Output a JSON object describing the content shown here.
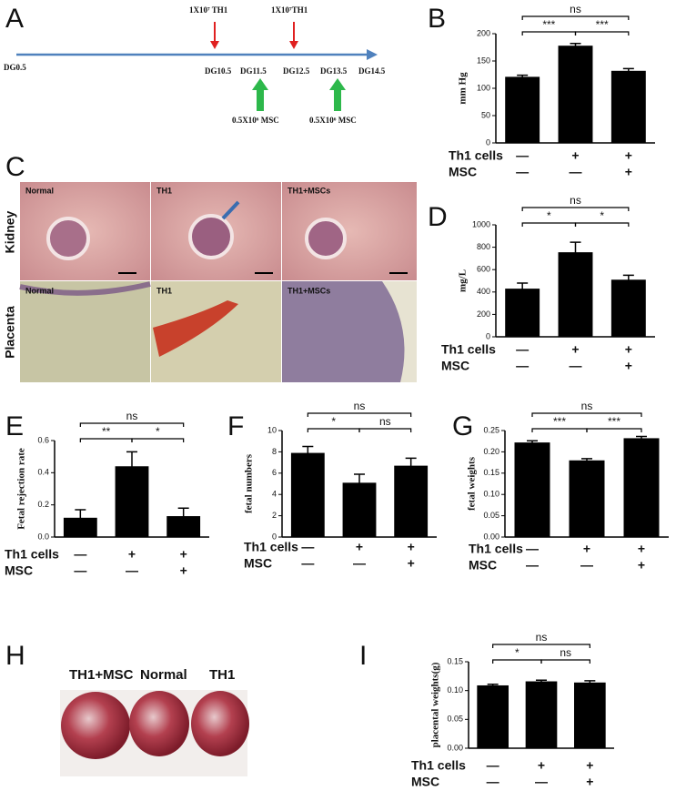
{
  "panel_a": {
    "letter": "A",
    "start": "DG0.5",
    "days": [
      "DG10.5",
      "DG11.5",
      "DG12.5",
      "DG13.5",
      "DG14.5"
    ],
    "th1_injections": [
      "1X10⁷ TH1",
      "1X10⁷TH1"
    ],
    "msc_injections": [
      "0.5X10⁶ MSC",
      "0.5X10⁶ MSC"
    ]
  },
  "panel_c": {
    "letter": "C",
    "rows": [
      "Kidney",
      "Placenta"
    ],
    "kidney_tiles": [
      "Normal",
      "TH1",
      "TH1+MSCs"
    ],
    "placenta_tiles": [
      "Normal",
      "TH1",
      "TH1+MSCs"
    ]
  },
  "panel_h": {
    "letter": "H",
    "labels": [
      "TH1+MSC",
      "Normal",
      "TH1"
    ]
  },
  "chart_data": [
    {
      "type": "bar",
      "panel": "B",
      "y_label": "mm Hg",
      "categories": [
        null,
        null,
        null
      ],
      "values": [
        121,
        178,
        132
      ],
      "errors": [
        3,
        4,
        4
      ],
      "color": "#000000",
      "ylim": [
        0,
        200
      ],
      "yticks": [
        0,
        50,
        100,
        150,
        200
      ],
      "conditions": [
        {
          "name": "Th1 cells",
          "labels": [
            "—",
            "+",
            "+"
          ]
        },
        {
          "name": "MSC",
          "labels": [
            "—",
            "—",
            "+"
          ]
        }
      ],
      "brackets": [
        {
          "label": "ns",
          "between": [
            0,
            2
          ]
        },
        {
          "label": "***",
          "between": [
            0,
            1
          ]
        },
        {
          "label": "***",
          "between": [
            1,
            2
          ]
        }
      ]
    },
    {
      "type": "bar",
      "panel": "D",
      "y_label": "mg/L",
      "categories": [
        null,
        null,
        null
      ],
      "values": [
        430,
        755,
        510
      ],
      "errors": [
        50,
        90,
        40
      ],
      "color": "#000000",
      "ylim": [
        0,
        1000
      ],
      "yticks": [
        0,
        200,
        400,
        600,
        800,
        1000
      ],
      "conditions": [
        {
          "name": "Th1 cells",
          "labels": [
            "—",
            "+",
            "+"
          ]
        },
        {
          "name": "MSC",
          "labels": [
            "—",
            "—",
            "+"
          ]
        }
      ],
      "brackets": [
        {
          "label": "ns",
          "between": [
            0,
            2
          ]
        },
        {
          "label": "*",
          "between": [
            0,
            1
          ]
        },
        {
          "label": "*",
          "between": [
            1,
            2
          ]
        }
      ]
    },
    {
      "type": "bar",
      "panel": "E",
      "y_label": "Fetal rejection rate",
      "categories": [
        null,
        null,
        null
      ],
      "values": [
        0.12,
        0.44,
        0.13
      ],
      "errors": [
        0.05,
        0.09,
        0.05
      ],
      "color": "#000000",
      "ylim": [
        0,
        0.6
      ],
      "yticks": [
        {
          "value": 0,
          "label": "0.0"
        },
        0.2,
        0.4,
        0.6
      ],
      "conditions": [
        {
          "name": "Th1 cells",
          "labels": [
            "—",
            "+",
            "+"
          ]
        },
        {
          "name": "MSC",
          "labels": [
            "—",
            "—",
            "+"
          ]
        }
      ],
      "brackets": [
        {
          "label": "ns",
          "between": [
            0,
            2
          ]
        },
        {
          "label": "**",
          "between": [
            0,
            1
          ]
        },
        {
          "label": "*",
          "between": [
            1,
            2
          ]
        }
      ]
    },
    {
      "type": "bar",
      "panel": "F",
      "y_label": "fetal numbers",
      "categories": [
        null,
        null,
        null
      ],
      "values": [
        7.9,
        5.1,
        6.7
      ],
      "errors": [
        0.6,
        0.8,
        0.7
      ],
      "color": "#000000",
      "ylim": [
        0,
        10
      ],
      "yticks": [
        0,
        2,
        4,
        6,
        8,
        10
      ],
      "conditions": [
        {
          "name": "Th1 cells",
          "labels": [
            "—",
            "+",
            "+"
          ]
        },
        {
          "name": "MSC",
          "labels": [
            "—",
            "—",
            "+"
          ]
        }
      ],
      "brackets": [
        {
          "label": "ns",
          "between": [
            0,
            2
          ]
        },
        {
          "label": "*",
          "between": [
            0,
            1
          ]
        },
        {
          "label": "ns",
          "between": [
            1,
            2
          ]
        }
      ]
    },
    {
      "type": "bar",
      "panel": "G",
      "y_label": "fetal weights",
      "categories": [
        null,
        null,
        null
      ],
      "values": [
        0.222,
        0.18,
        0.232
      ],
      "errors": [
        0.004,
        0.004,
        0.004
      ],
      "color": "#000000",
      "ylim": [
        0,
        0.25
      ],
      "yticks": [
        {
          "value": 0,
          "label": "0.00"
        },
        0.05,
        {
          "value": 0.1,
          "label": "0.10"
        },
        0.15,
        {
          "value": 0.2,
          "label": "0.20"
        },
        0.25
      ],
      "conditions": [
        {
          "name": "Th1 cells",
          "labels": [
            "—",
            "+",
            "+"
          ]
        },
        {
          "name": "MSC",
          "labels": [
            "—",
            "—",
            "+"
          ]
        }
      ],
      "brackets": [
        {
          "label": "ns",
          "between": [
            0,
            2
          ]
        },
        {
          "label": "***",
          "between": [
            0,
            1
          ]
        },
        {
          "label": "***",
          "between": [
            1,
            2
          ]
        }
      ]
    },
    {
      "type": "bar",
      "panel": "I",
      "y_label": "placental weights(g)",
      "categories": [
        null,
        null,
        null
      ],
      "values": [
        0.109,
        0.116,
        0.114
      ],
      "errors": [
        0.002,
        0.002,
        0.003
      ],
      "color": "#000000",
      "ylim": [
        0,
        0.15
      ],
      "yticks": [
        {
          "value": 0,
          "label": "0.00"
        },
        0.05,
        {
          "value": 0.1,
          "label": "0.10"
        },
        0.15
      ],
      "conditions": [
        {
          "name": "Th1 cells",
          "labels": [
            "—",
            "+",
            "+"
          ]
        },
        {
          "name": "MSC",
          "labels": [
            "—",
            "—",
            "+"
          ]
        }
      ],
      "brackets": [
        {
          "label": "ns",
          "between": [
            0,
            2
          ]
        },
        {
          "label": "*",
          "between": [
            0,
            1
          ]
        },
        {
          "label": "ns",
          "between": [
            1,
            2
          ]
        }
      ]
    }
  ]
}
